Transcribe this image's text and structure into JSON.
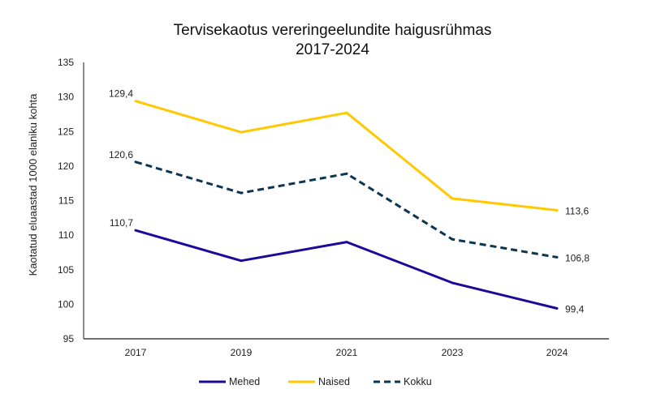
{
  "chart_data": {
    "type": "line",
    "title_line1": "Tervisekaotus vereringeelundite haigusrühmas",
    "title_line2": "2017-2024",
    "xlabel": "",
    "ylabel": "Kaotatud eluaastad 1000 elaniku kohta",
    "ylim": [
      95,
      135
    ],
    "yticks": [
      95,
      100,
      105,
      110,
      115,
      120,
      125,
      130,
      135
    ],
    "categories": [
      "2017",
      "2019",
      "2021",
      "2023",
      "2024"
    ],
    "legend_position": "bottom",
    "grid": false,
    "series": [
      {
        "name": "Mehed",
        "color": "#1a0a9c",
        "dash": false,
        "values": [
          110.7,
          106.3,
          109.0,
          103.1,
          99.4
        ],
        "labels": [
          "110,7",
          "",
          "",
          "",
          "99,4"
        ]
      },
      {
        "name": "Naised",
        "color": "#ffc800",
        "dash": false,
        "values": [
          129.4,
          124.9,
          127.7,
          115.3,
          113.6
        ],
        "labels": [
          "129,4",
          "",
          "",
          "",
          "113,6"
        ]
      },
      {
        "name": "Kokku",
        "color": "#0b3553",
        "dash": true,
        "values": [
          120.6,
          116.1,
          118.9,
          109.4,
          106.8
        ],
        "labels": [
          "120,6",
          "",
          "",
          "",
          "106,8"
        ]
      }
    ]
  }
}
